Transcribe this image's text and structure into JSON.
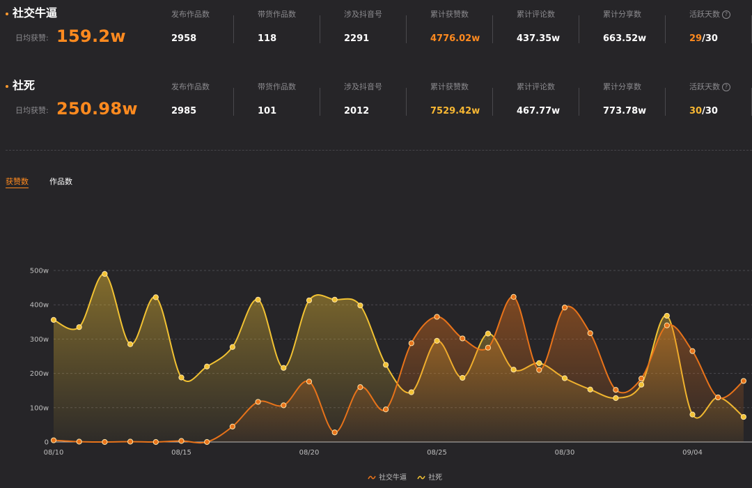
{
  "accounts": [
    {
      "name": "社交牛逼",
      "daily_label": "日均获赞:",
      "daily_value": "159.2w",
      "stats": [
        {
          "label": "发布作品数",
          "value": "2958"
        },
        {
          "label": "带货作品数",
          "value": "118"
        },
        {
          "label": "涉及抖音号",
          "value": "2291"
        },
        {
          "label": "累计获赞数",
          "value": "4776.02w"
        },
        {
          "label": "累计评论数",
          "value": "437.35w"
        },
        {
          "label": "累计分享数",
          "value": "663.52w"
        },
        {
          "label": "活跃天数",
          "value_a": "29",
          "value_b": "/30"
        }
      ]
    },
    {
      "name": "社死",
      "daily_label": "日均获赞:",
      "daily_value": "250.98w",
      "stats": [
        {
          "label": "发布作品数",
          "value": "2985"
        },
        {
          "label": "带货作品数",
          "value": "101"
        },
        {
          "label": "涉及抖音号",
          "value": "2012"
        },
        {
          "label": "累计获赞数",
          "value": "7529.42w"
        },
        {
          "label": "累计评论数",
          "value": "467.77w"
        },
        {
          "label": "累计分享数",
          "value": "773.78w"
        },
        {
          "label": "活跃天数",
          "value_a": "30",
          "value_b": "/30"
        }
      ]
    }
  ],
  "help_icon": "?",
  "tabs": [
    {
      "label": "获赞数",
      "active": true
    },
    {
      "label": "作品数",
      "active": false
    }
  ],
  "chart_data": {
    "type": "area",
    "x": [
      "08/10",
      "08/11",
      "08/12",
      "08/13",
      "08/14",
      "08/15",
      "08/16",
      "08/17",
      "08/18",
      "08/19",
      "08/20",
      "08/21",
      "08/22",
      "08/23",
      "08/24",
      "08/25",
      "08/26",
      "08/27",
      "08/28",
      "08/29",
      "08/30",
      "08/31",
      "09/01",
      "09/02",
      "09/03",
      "09/04",
      "09/05",
      "09/06"
    ],
    "x_tick_labels": [
      "08/10",
      "08/15",
      "08/20",
      "08/25",
      "08/30",
      "09/04"
    ],
    "y_tick_labels": [
      "0",
      "100w",
      "200w",
      "300w",
      "400w",
      "500w"
    ],
    "ylim": [
      0,
      500
    ],
    "grid": true,
    "legend_position": "bottom",
    "series": [
      {
        "name": "社交牛逼",
        "color": "#e8731a",
        "values": [
          5,
          1,
          0,
          1,
          0,
          3,
          0,
          45,
          117,
          107,
          176,
          28,
          160,
          95,
          288,
          365,
          302,
          275,
          423,
          210,
          392,
          317,
          152,
          185,
          340,
          265,
          130,
          178
        ]
      },
      {
        "name": "社死",
        "color": "#f2c233",
        "values": [
          356,
          335,
          490,
          285,
          422,
          188,
          220,
          277,
          415,
          216,
          413,
          415,
          398,
          225,
          145,
          295,
          187,
          316,
          211,
          230,
          186,
          153,
          128,
          167,
          368,
          80,
          130,
          73
        ]
      }
    ]
  }
}
